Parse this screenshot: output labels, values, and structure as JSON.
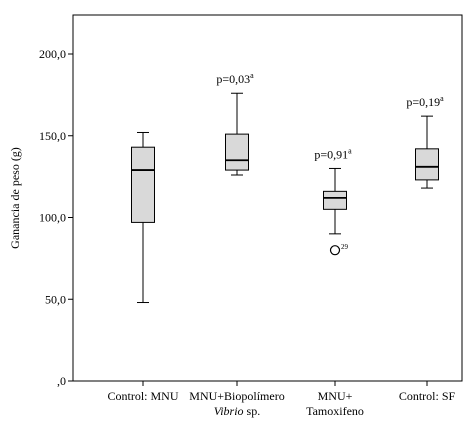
{
  "chart_data": {
    "type": "boxplot",
    "ylabel": "Ganancia de peso (g)",
    "ylim": [
      0,
      230
    ],
    "yticks": [
      {
        "value": 0,
        "label": ",0"
      },
      {
        "value": 50,
        "label": "50,0"
      },
      {
        "value": 100,
        "label": "100,0"
      },
      {
        "value": 150,
        "label": "150,0"
      },
      {
        "value": 200,
        "label": "200,0"
      }
    ],
    "grid": false,
    "box_color": "#d9d9d9",
    "groups": [
      {
        "label_line1": "Control: MNU",
        "label_line2": "",
        "label_line2_italic": "",
        "min": 48,
        "q1": 97,
        "median": 129,
        "q3": 143,
        "max": 152,
        "annotation": "",
        "annotation_sup": "",
        "outliers": []
      },
      {
        "label_line1": "MNU+Biopolímero",
        "label_line2": "sp.",
        "label_line2_italic": "Vibrio",
        "min": 126,
        "q1": 129,
        "median": 135,
        "q3": 151,
        "max": 176,
        "annotation": "p=0,03",
        "annotation_sup": "a",
        "outliers": []
      },
      {
        "label_line1": "MNU+",
        "label_line2": "Tamoxifeno",
        "label_line2_italic": "",
        "min": 90,
        "q1": 105,
        "median": 112,
        "q3": 116,
        "max": 130,
        "annotation": "p=0,91",
        "annotation_sup": "a",
        "outliers": [
          {
            "value": 80,
            "label": "29"
          }
        ]
      },
      {
        "label_line1": "Control: SF",
        "label_line2": "",
        "label_line2_italic": "",
        "min": 118,
        "q1": 123,
        "median": 131,
        "q3": 142,
        "max": 162,
        "annotation": "p=0,19",
        "annotation_sup": "a",
        "outliers": []
      }
    ]
  }
}
